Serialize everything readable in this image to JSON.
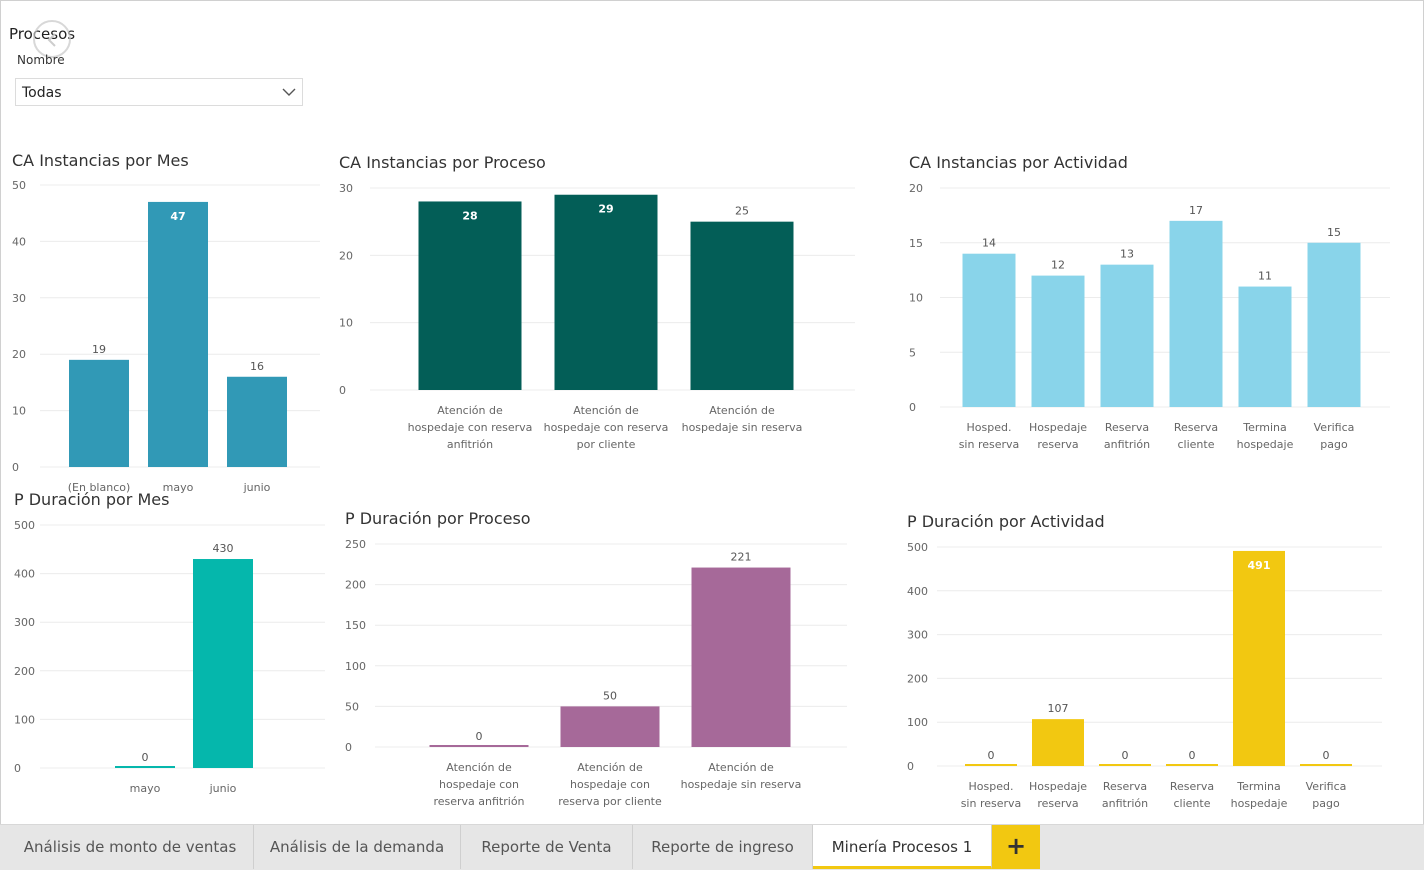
{
  "filter": {
    "title": "Procesos",
    "label": "Nombre",
    "value": "Todas"
  },
  "charts": [
    {
      "title": "CA Instancias por Mes",
      "chart_data": {
        "type": "bar",
        "categories": [
          "(En blanco)",
          "mayo",
          "junio"
        ],
        "values": [
          19,
          47,
          16
        ],
        "ylim": [
          0,
          50
        ],
        "yticks": [
          0,
          10,
          20,
          30,
          40,
          50
        ],
        "color": "#3199b6",
        "inside_labels": [
          false,
          true,
          false
        ],
        "grid": true
      }
    },
    {
      "title": "CA Instancias por Proceso",
      "chart_data": {
        "type": "bar",
        "categories": [
          [
            "Atención de",
            "hospedaje con reserva",
            "anfitrión"
          ],
          [
            "Atención de",
            "hospedaje con reserva",
            "por cliente"
          ],
          [
            "Atención de",
            "hospedaje sin reserva"
          ]
        ],
        "values": [
          28,
          29,
          25
        ],
        "ylim": [
          0,
          30
        ],
        "yticks": [
          0,
          10,
          20,
          30
        ],
        "color": "#035e57",
        "inside_labels": [
          true,
          true,
          false
        ],
        "grid": true
      }
    },
    {
      "title": "CA Instancias por Actividad",
      "chart_data": {
        "type": "bar",
        "categories": [
          [
            "Hosped.",
            "sin reserva"
          ],
          [
            "Hospedaje",
            "reserva"
          ],
          [
            "Reserva",
            "anfitrión"
          ],
          [
            "Reserva",
            "cliente"
          ],
          [
            "Termina",
            "hospedaje"
          ],
          [
            "Verifica",
            "pago"
          ]
        ],
        "values": [
          14,
          12,
          13,
          17,
          11,
          15
        ],
        "ylim": [
          0,
          20
        ],
        "yticks": [
          0,
          5,
          10,
          15,
          20
        ],
        "color": "#89d4ea",
        "inside_labels": [
          false,
          false,
          false,
          false,
          false,
          false
        ],
        "grid": true
      }
    },
    {
      "title": "P Duración por Mes",
      "chart_data": {
        "type": "bar",
        "categories": [
          "mayo",
          "junio"
        ],
        "values": [
          0,
          430
        ],
        "ylim": [
          0,
          500
        ],
        "yticks": [
          0,
          100,
          200,
          300,
          400,
          500
        ],
        "color": "#05b7ac",
        "inside_labels": [
          false,
          false
        ],
        "grid": true
      }
    },
    {
      "title": "P Duración por Proceso",
      "chart_data": {
        "type": "bar",
        "categories": [
          [
            "Atención de",
            "hospedaje con",
            "reserva anfitrión"
          ],
          [
            "Atención de",
            "hospedaje con",
            "reserva por cliente"
          ],
          [
            "Atención de",
            "hospedaje sin reserva"
          ]
        ],
        "values": [
          0,
          50,
          221
        ],
        "ylim": [
          0,
          250
        ],
        "yticks": [
          0,
          50,
          100,
          150,
          200,
          250
        ],
        "color": "#a66999",
        "inside_labels": [
          false,
          false,
          false
        ],
        "grid": true
      }
    },
    {
      "title": "P Duración por Actividad",
      "chart_data": {
        "type": "bar",
        "categories": [
          [
            "Hosped.",
            "sin reserva"
          ],
          [
            "Hospedaje",
            "reserva"
          ],
          [
            "Reserva",
            "anfitrión"
          ],
          [
            "Reserva",
            "cliente"
          ],
          [
            "Termina",
            "hospedaje"
          ],
          [
            "Verifica",
            "pago"
          ]
        ],
        "values": [
          0,
          107,
          0,
          0,
          491,
          0
        ],
        "ylim": [
          0,
          500
        ],
        "yticks": [
          0,
          100,
          200,
          300,
          400,
          500
        ],
        "color": "#f2c811",
        "inside_labels": [
          false,
          false,
          false,
          false,
          true,
          false
        ],
        "grid": true
      }
    }
  ],
  "tabs": [
    {
      "label": "Análisis de monto de ventas",
      "active": false
    },
    {
      "label": "Análisis de la demanda",
      "active": false
    },
    {
      "label": "Reporte de Venta",
      "active": false
    },
    {
      "label": "Reporte de ingreso",
      "active": false
    },
    {
      "label": "Minería Procesos 1",
      "active": true
    }
  ],
  "add_tab": {
    "label": "+"
  },
  "colors": {
    "grid": "#ececec",
    "axis_text": "#666666",
    "active_tab_accent": "#f2c811"
  }
}
